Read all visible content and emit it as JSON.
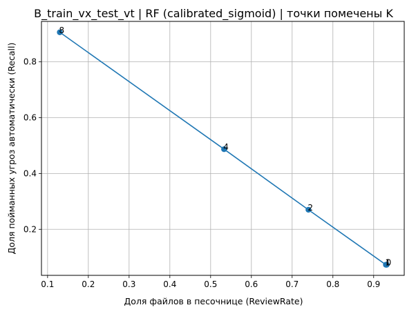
{
  "chart_data": {
    "type": "line",
    "title": "B_train_vx_test_vt | RF (calibrated_sigmoid) | точки помечены K",
    "xlabel": "Доля файлов в песочнице (ReviewRate)",
    "ylabel": "Доля пойманных угроз автоматически (Recall)",
    "xlim": [
      0.085,
      0.975
    ],
    "ylim": [
      0.035,
      0.945
    ],
    "xticks": [
      0.1,
      0.2,
      0.3,
      0.4,
      0.5,
      0.6,
      0.7,
      0.8,
      0.9
    ],
    "xtick_labels": [
      "0.1",
      "0.2",
      "0.3",
      "0.4",
      "0.5",
      "0.6",
      "0.7",
      "0.8",
      "0.9"
    ],
    "yticks": [
      0.2,
      0.4,
      0.6,
      0.8
    ],
    "ytick_labels": [
      "0.2",
      "0.4",
      "0.6",
      "0.8"
    ],
    "grid": true,
    "series": [
      {
        "color": "#1f77b4",
        "marker": "circle",
        "points": [
          {
            "x": 0.13,
            "y": 0.906,
            "label": "8"
          },
          {
            "x": 0.533,
            "y": 0.487,
            "label": "4"
          },
          {
            "x": 0.74,
            "y": 0.27,
            "label": "2"
          },
          {
            "x": 0.93,
            "y": 0.073,
            "label": "1"
          },
          {
            "x": 0.932,
            "y": 0.073,
            "label": "0"
          }
        ]
      }
    ]
  }
}
